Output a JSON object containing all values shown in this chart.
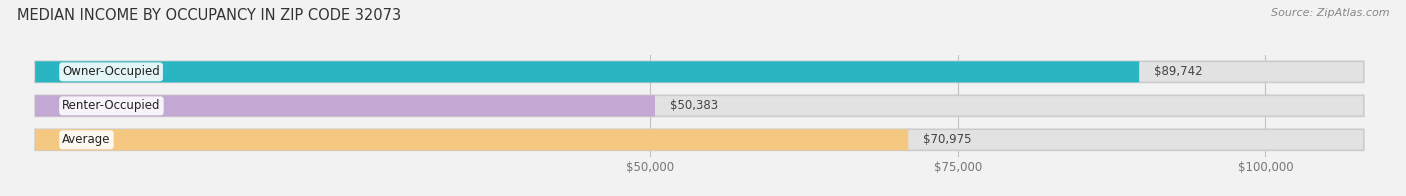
{
  "title": "MEDIAN INCOME BY OCCUPANCY IN ZIP CODE 32073",
  "source": "Source: ZipAtlas.com",
  "categories": [
    "Owner-Occupied",
    "Renter-Occupied",
    "Average"
  ],
  "values": [
    89742,
    50383,
    70975
  ],
  "labels": [
    "$89,742",
    "$50,383",
    "$70,975"
  ],
  "bar_colors": [
    "#2ab5c2",
    "#c4a8d4",
    "#f5c882"
  ],
  "background_color": "#f2f2f2",
  "bar_bg_color": "#e2e2e2",
  "xlim": [
    0,
    108000
  ],
  "xticks": [
    50000,
    75000,
    100000
  ],
  "xticklabels": [
    "$50,000",
    "$75,000",
    "$100,000"
  ],
  "title_fontsize": 10.5,
  "source_fontsize": 8,
  "label_fontsize": 8.5,
  "tick_fontsize": 8.5,
  "bar_height": 0.62,
  "figsize": [
    14.06,
    1.96
  ],
  "dpi": 100
}
